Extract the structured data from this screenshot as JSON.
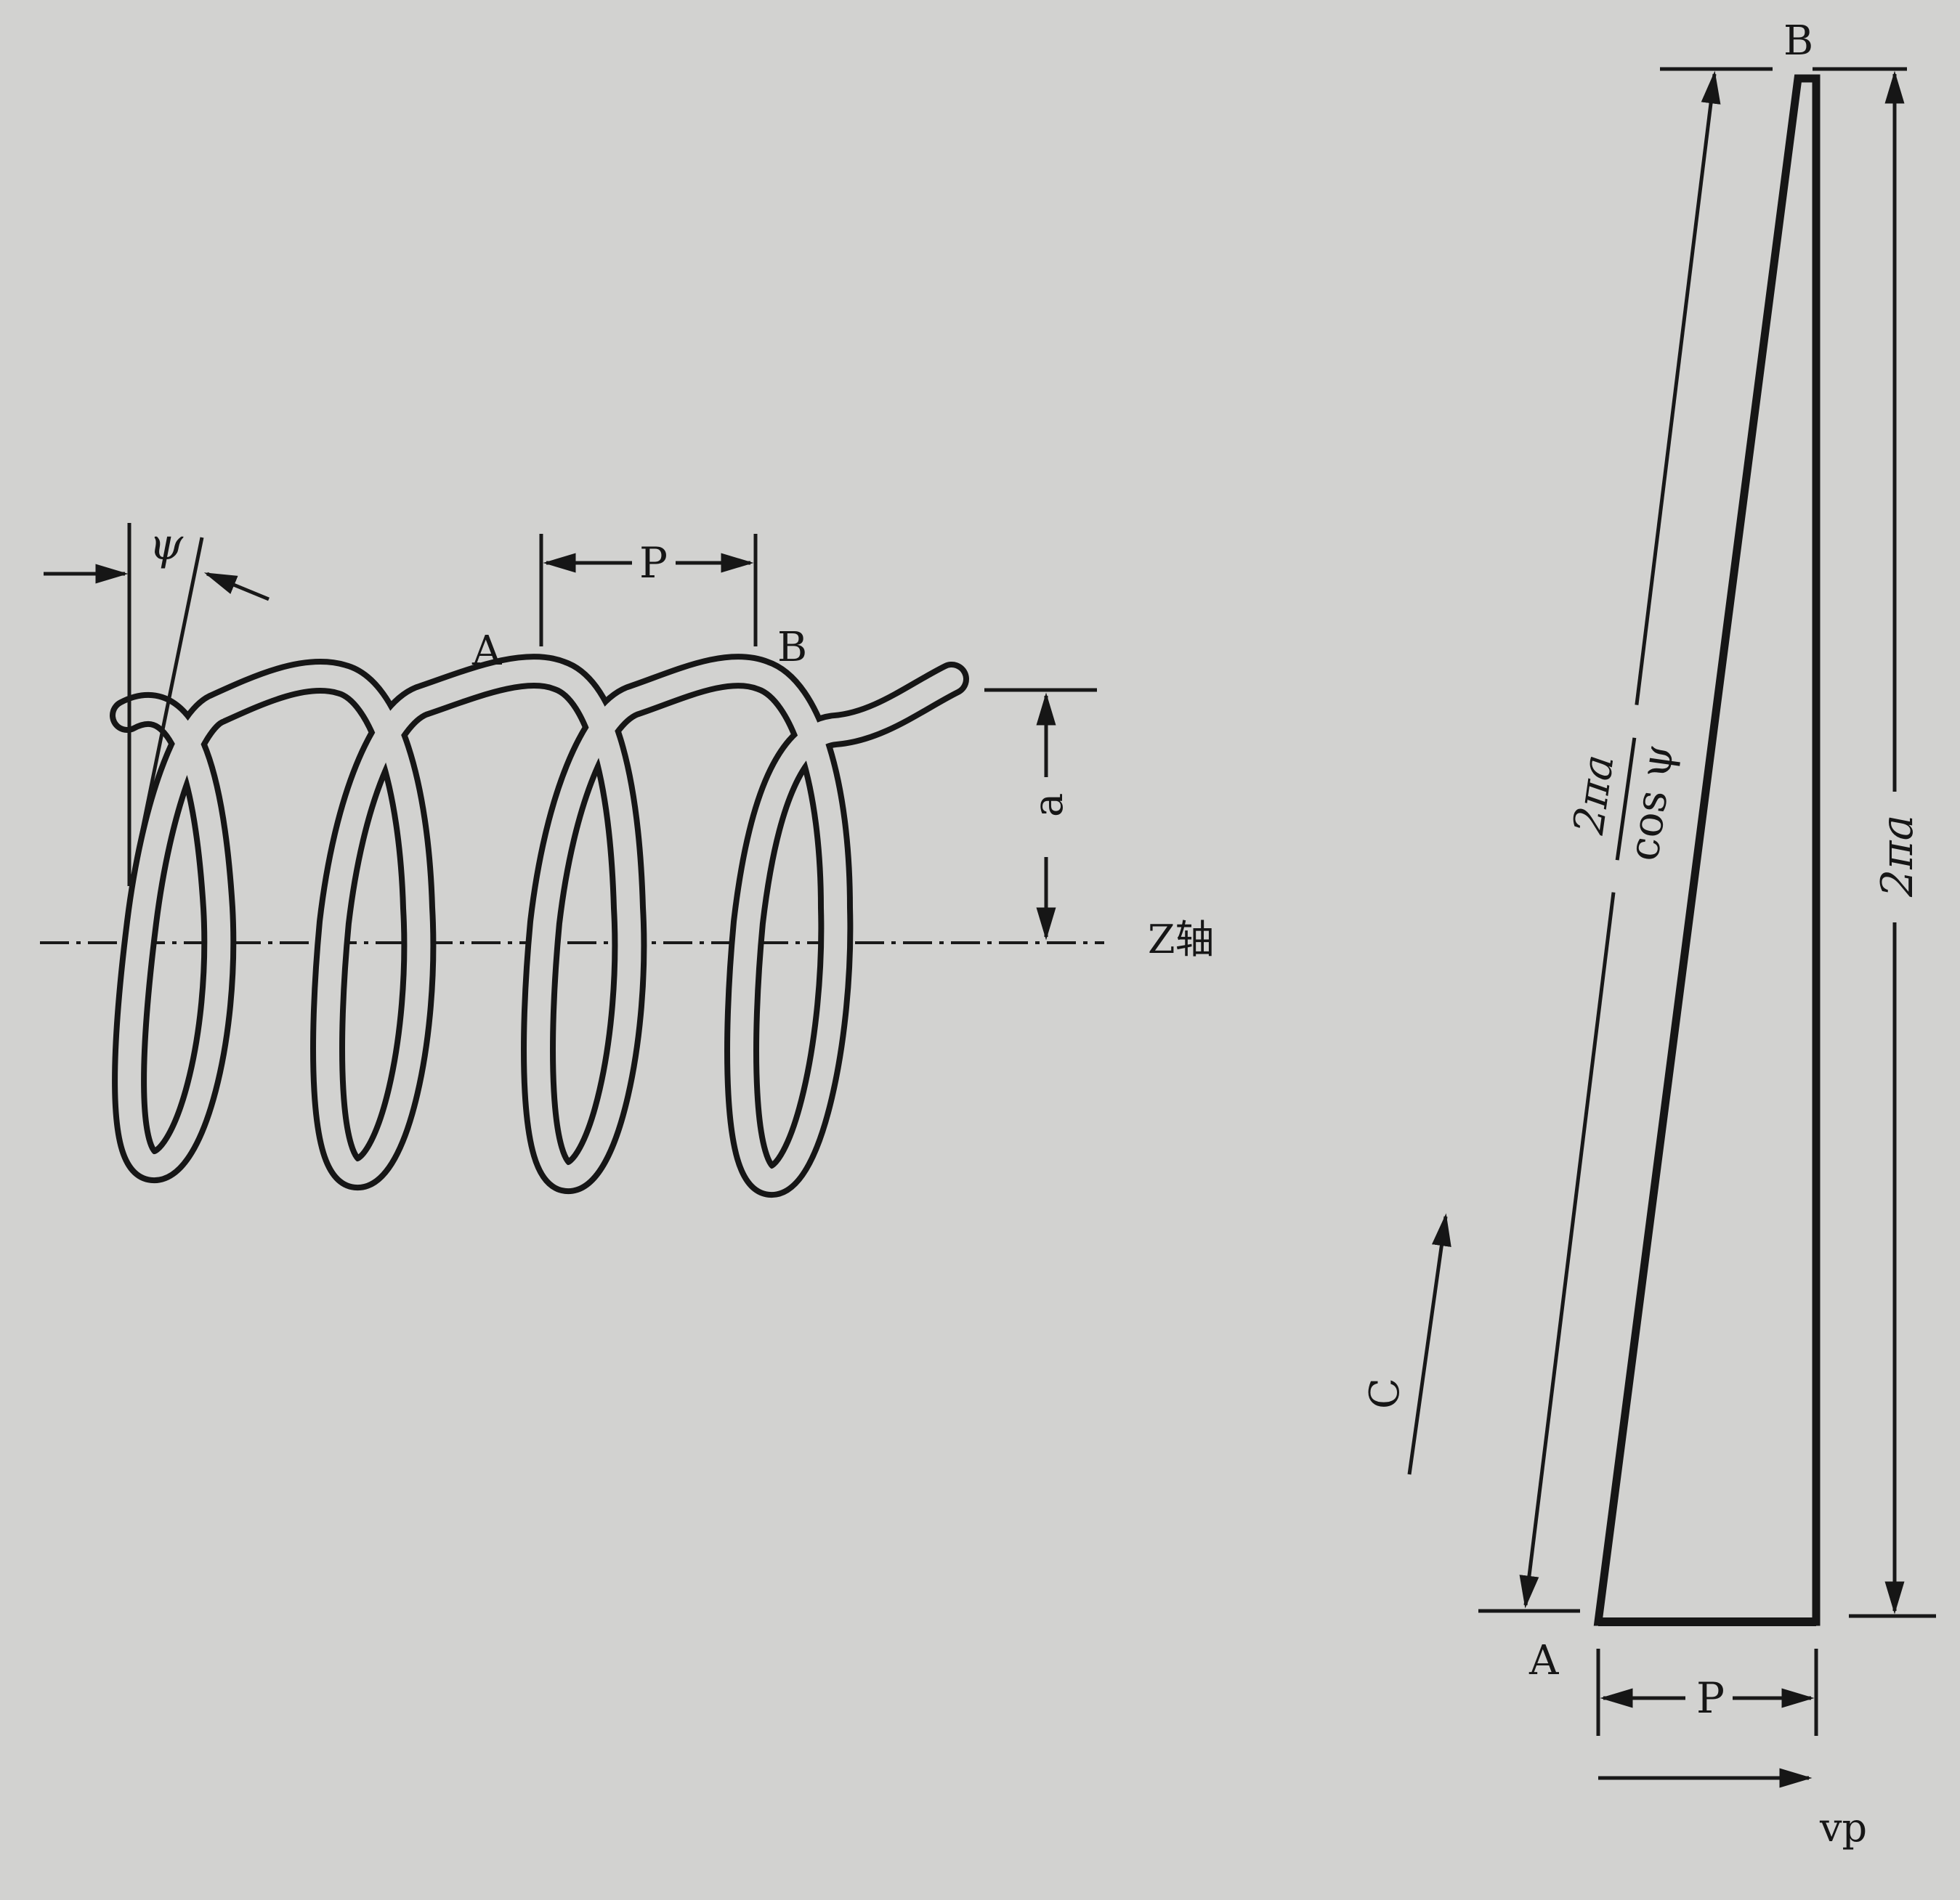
{
  "helix": {
    "psi_label": "ψ",
    "pitch_label": "P",
    "point_a": "A",
    "point_b": "B",
    "radius_label": "a",
    "axis_label": "Z轴"
  },
  "triangle": {
    "point_a": "A",
    "point_b": "B",
    "hyp_num": "2πa",
    "hyp_den": "cos ψ",
    "side_label": "2πa",
    "base_label": "P",
    "c_label": "C",
    "vp_label": "vp"
  },
  "colors": {
    "paper": "#d2d2d0",
    "ink": "#161616"
  }
}
